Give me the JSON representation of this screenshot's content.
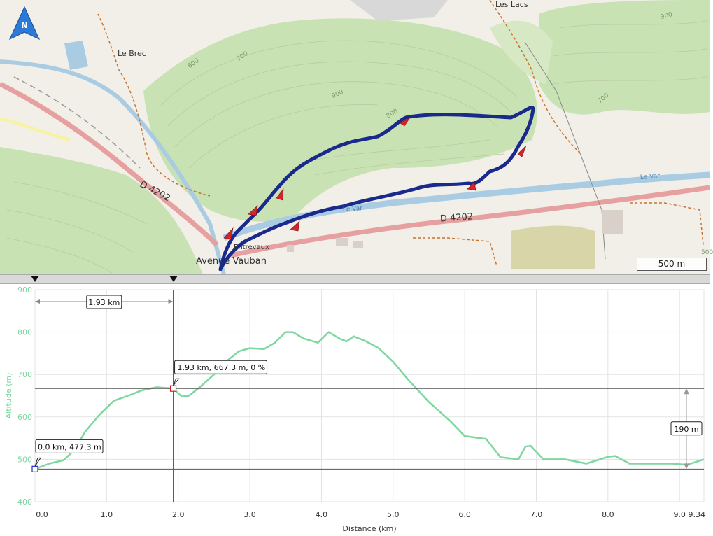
{
  "map": {
    "compass_label": "N",
    "place_labels": {
      "les_lacs": "Les Lacs",
      "le_brec": "Le Brec",
      "road_left": "D 4202",
      "road_right": "D 4202",
      "river_1": "Le Var",
      "river_2": "Le Var",
      "avenue": "Avenue Vauban",
      "entrevaux": "Entrevaux"
    },
    "contour_labels": [
      "600",
      "700",
      "900",
      "800",
      "900",
      "700",
      "500"
    ],
    "scale_label": "500 m"
  },
  "profile": {
    "distance_bracket_label": "1.93 km",
    "cursor_label": "1.93 km, 667.3 m, 0 %",
    "start_label": "0.0 km, 477.3 m",
    "elevation_diff_label": "190 m",
    "colors": {
      "line": "#7ed6a0",
      "axis_label": "#7ed6a0"
    }
  },
  "chart_data": {
    "type": "line",
    "xlabel": "Distance (km)",
    "ylabel": "Altitude (m)",
    "xlim": [
      0,
      9.34
    ],
    "ylim": [
      400,
      900
    ],
    "x_ticks": [
      0.0,
      1.0,
      2.0,
      3.0,
      4.0,
      5.0,
      6.0,
      7.0,
      8.0,
      9.0,
      9.34
    ],
    "x_tick_labels": [
      "0.0",
      "1.0",
      "2.0",
      "3.0",
      "4.0",
      "5.0",
      "6.0",
      "7.0",
      "8.0",
      "9.0",
      "9.34"
    ],
    "y_ticks": [
      400,
      500,
      600,
      700,
      800,
      900
    ],
    "y_tick_labels": [
      "400",
      "500",
      "600",
      "700",
      "800",
      "900"
    ],
    "grid": true,
    "series": [
      {
        "x": [
          0.0,
          0.2,
          0.4,
          0.55,
          0.7,
          0.9,
          1.1,
          1.3,
          1.5,
          1.7,
          1.93,
          2.05,
          2.15,
          2.3,
          2.5,
          2.7,
          2.85,
          3.0,
          3.2,
          3.35,
          3.5,
          3.6,
          3.75,
          3.95,
          4.1,
          4.25,
          4.35,
          4.45,
          4.6,
          4.8,
          5.0,
          5.2,
          5.5,
          5.8,
          6.0,
          6.3,
          6.5,
          6.75,
          6.85,
          6.92,
          7.1,
          7.4,
          7.7,
          8.0,
          8.1,
          8.3,
          8.6,
          8.9,
          9.1,
          9.34
        ],
        "y": [
          477,
          490,
          498,
          522,
          565,
          605,
          638,
          650,
          663,
          670,
          667,
          648,
          650,
          670,
          700,
          735,
          755,
          762,
          760,
          775,
          800,
          800,
          785,
          775,
          800,
          785,
          778,
          790,
          780,
          762,
          730,
          690,
          635,
          590,
          555,
          548,
          505,
          500,
          530,
          532,
          500,
          500,
          490,
          506,
          508,
          490,
          490,
          490,
          487,
          500
        ]
      }
    ]
  }
}
